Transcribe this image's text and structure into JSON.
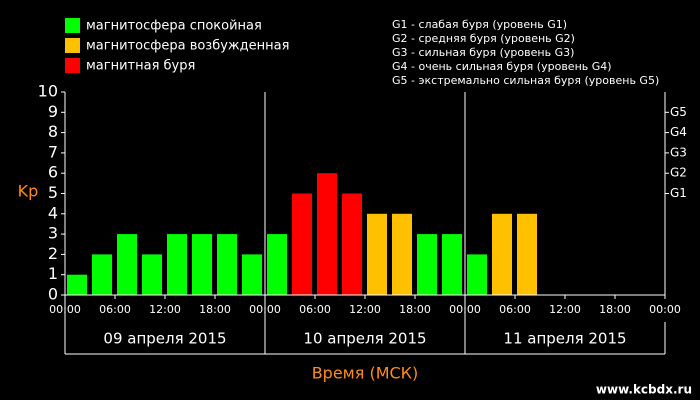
{
  "chart_data": {
    "type": "bar",
    "xlabel": "Время (МСК)",
    "ylabel": "Kp",
    "ylim": [
      0,
      10
    ],
    "yticks": [
      0,
      1,
      2,
      3,
      4,
      5,
      6,
      7,
      8,
      9,
      10
    ],
    "y2lim": [
      0,
      10
    ],
    "y2ticks": [
      {
        "value": 5,
        "label": "G1"
      },
      {
        "value": 6,
        "label": "G2"
      },
      {
        "value": 7,
        "label": "G3"
      },
      {
        "value": 8,
        "label": "G4"
      },
      {
        "value": 9,
        "label": "G5"
      }
    ],
    "xlim": [
      0,
      72
    ],
    "xticks": [
      {
        "value": 0,
        "label": "00:00"
      },
      {
        "value": 6,
        "label": "06:00"
      },
      {
        "value": 12,
        "label": "12:00"
      },
      {
        "value": 18,
        "label": "18:00"
      },
      {
        "value": 24,
        "label": "00:00"
      },
      {
        "value": 30,
        "label": "06:00"
      },
      {
        "value": 36,
        "label": "12:00"
      },
      {
        "value": 42,
        "label": "18:00"
      },
      {
        "value": 48,
        "label": "00:00"
      },
      {
        "value": 54,
        "label": "06:00"
      },
      {
        "value": 60,
        "label": "12:00"
      },
      {
        "value": 66,
        "label": "18:00"
      },
      {
        "value": 72,
        "label": "00:00"
      }
    ],
    "days": [
      {
        "label": "09 апреля 2015",
        "start": 0,
        "end": 24
      },
      {
        "label": "10 апреля 2015",
        "start": 24,
        "end": 48
      },
      {
        "label": "11 апреля 2015",
        "start": 48,
        "end": 72
      }
    ],
    "x": [
      0,
      3,
      6,
      9,
      12,
      15,
      18,
      21,
      24,
      27,
      30,
      33,
      36,
      39,
      42,
      45,
      48,
      51,
      54,
      57,
      60,
      63,
      66,
      69
    ],
    "series": [
      {
        "name": "магнитосфера спокойная",
        "color": "#00ff00",
        "values": [
          1,
          2,
          3,
          2,
          3,
          3,
          3,
          2,
          3,
          null,
          null,
          null,
          null,
          null,
          3,
          3,
          2,
          null,
          null,
          null,
          null,
          null,
          null,
          null
        ]
      },
      {
        "name": "магнитосфера возбужденная",
        "color": "#ffc000",
        "values": [
          null,
          null,
          null,
          null,
          null,
          null,
          null,
          null,
          null,
          null,
          null,
          null,
          4,
          4,
          null,
          null,
          null,
          4,
          4,
          null,
          null,
          null,
          null,
          null
        ]
      },
      {
        "name": "магнитная буря",
        "color": "#ff0000",
        "values": [
          null,
          null,
          null,
          null,
          null,
          null,
          null,
          null,
          null,
          5,
          6,
          5,
          null,
          null,
          null,
          null,
          null,
          null,
          null,
          null,
          null,
          null,
          null,
          null
        ]
      }
    ],
    "storm_legend": [
      "G1 - слабая буря (уровень G1)",
      "G2 - средняя буря (уровень G2)",
      "G3 - сильная буря (уровень G3)",
      "G4 - очень сильная буря (уровень G4)",
      "G5 - экстремально сильная буря (уровень G5)"
    ],
    "watermark": "www.kcbdx.ru"
  }
}
